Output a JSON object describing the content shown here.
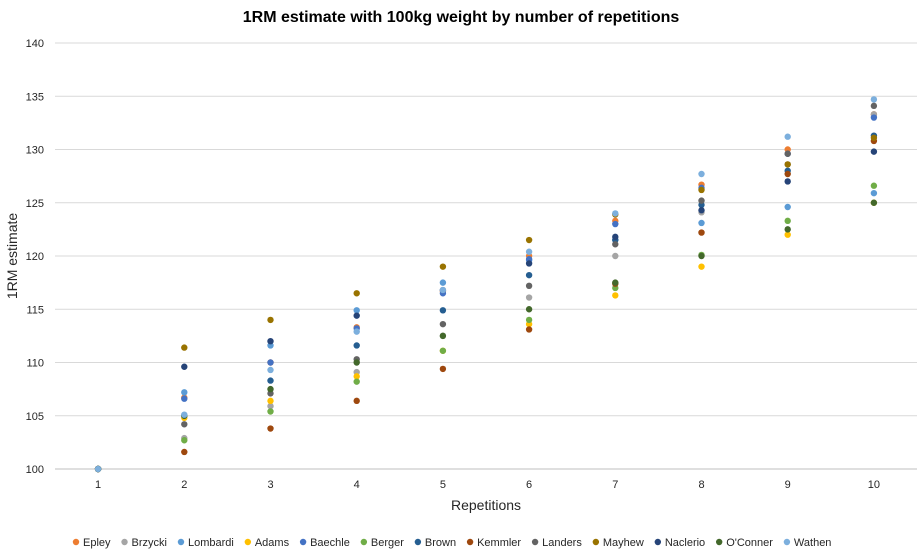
{
  "chart_data": {
    "type": "scatter",
    "title": "1RM estimate with 100kg weight by number of repetitions",
    "xlabel": "Repetitions",
    "ylabel": "1RM estimate",
    "x": [
      1,
      2,
      3,
      4,
      5,
      6,
      7,
      8,
      9,
      10
    ],
    "xlim": [
      0.5,
      10.5
    ],
    "ylim": [
      100,
      140
    ],
    "yticks": [
      100,
      105,
      110,
      115,
      120,
      125,
      130,
      135,
      140
    ],
    "grid": "horizontal",
    "legend_position": "bottom",
    "series": [
      {
        "name": "Epley",
        "color": "#ED7D31",
        "values": [
          100,
          106.7,
          110,
          113.3,
          116.7,
          120,
          123.3,
          126.7,
          130,
          133.3
        ]
      },
      {
        "name": "Brzycki",
        "color": "#A5A5A5",
        "values": [
          100,
          102.9,
          105.9,
          109.1,
          112.5,
          116.1,
          120,
          124.1,
          128.6,
          133.3
        ]
      },
      {
        "name": "Lombardi",
        "color": "#5B9BD5",
        "values": [
          100,
          107.2,
          111.6,
          114.9,
          117.5,
          119.6,
          121.5,
          123.1,
          124.6,
          125.9
        ]
      },
      {
        "name": "Adams",
        "color": "#FFC000",
        "values": [
          100,
          104.8,
          106.4,
          108.7,
          111.1,
          113.6,
          116.3,
          119,
          122,
          125
        ]
      },
      {
        "name": "Baechle",
        "color": "#4472C4",
        "values": [
          100,
          106.6,
          110,
          113.2,
          116.5,
          119.7,
          123,
          126.4,
          129.6,
          133
        ]
      },
      {
        "name": "Berger",
        "color": "#70AD47",
        "values": [
          100,
          102.7,
          105.4,
          108.2,
          111.1,
          114,
          117,
          120.1,
          123.3,
          126.6
        ]
      },
      {
        "name": "Brown",
        "color": "#255E91",
        "values": [
          100,
          105,
          108.3,
          111.6,
          114.9,
          118.2,
          121.5,
          124.8,
          128,
          131.3
        ]
      },
      {
        "name": "Kemmler",
        "color": "#9E480E",
        "values": [
          100,
          101.6,
          103.8,
          106.4,
          109.4,
          113.1,
          117.4,
          122.2,
          127.7,
          130.8
        ]
      },
      {
        "name": "Landers",
        "color": "#636363",
        "values": [
          100,
          104.2,
          107.1,
          110.3,
          113.6,
          117.2,
          121.1,
          125.2,
          129.6,
          134.1
        ]
      },
      {
        "name": "Mayhew",
        "color": "#997300",
        "values": [
          100,
          111.4,
          114,
          116.5,
          119,
          121.5,
          123.9,
          126.2,
          128.6,
          131.1
        ]
      },
      {
        "name": "Naclerio",
        "color": "#264478",
        "values": [
          100,
          109.6,
          112,
          114.4,
          116.8,
          119.3,
          121.8,
          124.3,
          127,
          129.8
        ]
      },
      {
        "name": "O'Conner",
        "color": "#43682B",
        "values": [
          100,
          105,
          107.5,
          110,
          112.5,
          115,
          117.5,
          120,
          122.5,
          125
        ]
      },
      {
        "name": "Wathen",
        "color": "#7CAFDD",
        "values": [
          100,
          105.1,
          109.3,
          112.9,
          116.8,
          120.4,
          124,
          127.7,
          131.2,
          134.7
        ]
      }
    ]
  }
}
